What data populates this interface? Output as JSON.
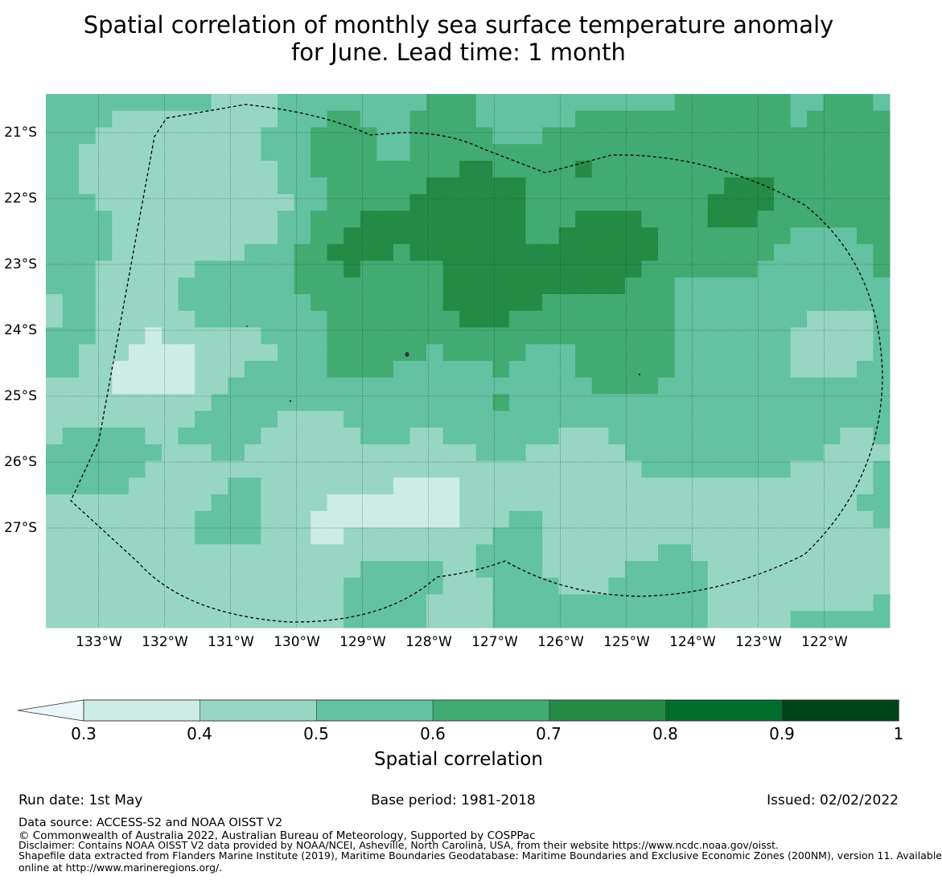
{
  "title": {
    "line1": "Spatial correlation of monthly sea surface temperature anomaly",
    "line2": "for June. Lead time: 1 month"
  },
  "chart_data": {
    "type": "heatmap",
    "title": "Spatial correlation of monthly sea surface temperature anomaly for June. Lead time: 1 month",
    "x_ticks": [
      "133°W",
      "132°W",
      "131°W",
      "130°W",
      "129°W",
      "128°W",
      "127°W",
      "126°W",
      "125°W",
      "124°W",
      "123°W",
      "122°W"
    ],
    "y_ticks": [
      "21°S",
      "22°S",
      "23°S",
      "24°S",
      "25°S",
      "26°S",
      "27°S"
    ],
    "x_range_deg_w": [
      133.8,
      121.0
    ],
    "y_range_deg_s": [
      20.6,
      28.7
    ],
    "grid": true,
    "values_description": "per-cell correlation 0.3-0.8, strongest (0.7-0.8) north-central, weakest (<0.4) in scattered southern and western patches",
    "colorbar": {
      "label": "Spatial correlation",
      "ticks": [
        "0.3",
        "0.4",
        "0.5",
        "0.6",
        "0.7",
        "0.8",
        "0.9",
        "1"
      ],
      "bins": [
        0.3,
        0.4,
        0.5,
        0.6,
        0.7,
        0.8,
        0.9,
        1.0
      ],
      "colors": [
        "#cdece3",
        "#98d6c4",
        "#62c2a1",
        "#41ab72",
        "#238b45",
        "#006d2c",
        "#00441b"
      ],
      "under_color": "#eaf6f9",
      "extend": "min"
    },
    "colors": {
      "under": "#eaf6f9",
      "c30": "#cdece3",
      "c40": "#98d6c4",
      "c50": "#62c2a1",
      "c60": "#41ab72",
      "c70": "#238b45",
      "c80": "#006d2c",
      "c90": "#00441b"
    }
  },
  "footer": {
    "run_date": "Run date: 1st May",
    "base_period": "Base period: 1981-2018",
    "issued": "Issued: 02/02/2022",
    "data_source": "Data source: ACCESS-S2 and NOAA OISST V2",
    "copyright": "© Commonwealth of Australia 2022, Australian Bureau of Meteorology, Supported by COSPPac",
    "disclaimer": "Disclaimer: Contains NOAA OISST V2 data provided by NOAA/NCEI, Asheville, North Carolina, USA, from their website https://www.ncdc.noaa.gov/oisst.",
    "shapefile_line1": "Shapefile data extracted from Flanders Marine Institute (2019), Maritime Boundaries Geodatabase: Maritime Boundaries and Exclusive Economic Zones (200NM), version 11. Available",
    "shapefile_line2": "online at http://www.marineregions.org/."
  }
}
